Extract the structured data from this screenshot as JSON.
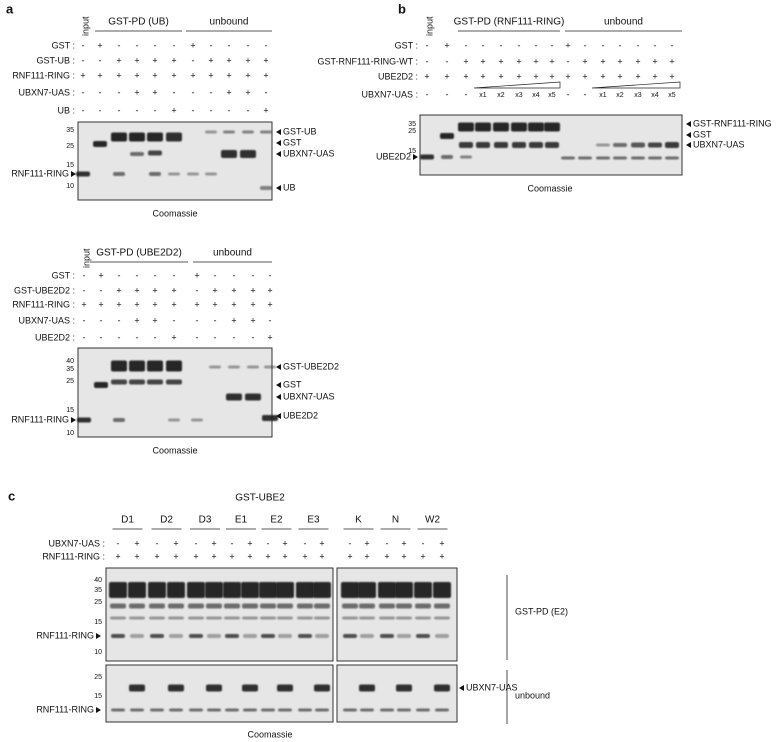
{
  "panel_a": {
    "letter": "a",
    "input": "input",
    "headers": [
      "GST-PD (UB)",
      "unbound"
    ],
    "rows": [
      {
        "name": "GST :",
        "signs": [
          "-",
          "+",
          "-",
          "-",
          "-",
          "-",
          "+",
          "-",
          "-",
          "-",
          "-"
        ]
      },
      {
        "name": "GST-UB :",
        "signs": [
          "-",
          "-",
          "+",
          "+",
          "+",
          "+",
          "-",
          "+",
          "+",
          "+",
          "+"
        ]
      },
      {
        "name": "RNF111-RING :",
        "signs": [
          "+",
          "+",
          "+",
          "+",
          "+",
          "+",
          "+",
          "+",
          "+",
          "+",
          "+"
        ]
      },
      {
        "name": "UBXN7-UAS :",
        "signs": [
          "-",
          "-",
          "-",
          "+",
          "+",
          "-",
          "-",
          "-",
          "+",
          "+",
          "-"
        ]
      },
      {
        "name": "UB :",
        "signs": [
          "-",
          "-",
          "-",
          "-",
          "-",
          "+",
          "-",
          "-",
          "-",
          "-",
          "+"
        ]
      }
    ],
    "markers": [
      35,
      25,
      15,
      10
    ],
    "right_labels": [
      "GST-UB",
      "GST",
      "UBXN7-UAS",
      "UB"
    ],
    "left_label": "RNF111-RING",
    "footer": "Coomassie"
  },
  "panel_b": {
    "letter": "b",
    "input": "input",
    "headers": [
      "GST-PD (RNF111-RING)",
      "unbound"
    ],
    "rows": [
      {
        "name": "GST :",
        "signs": [
          "-",
          "+",
          "-",
          "-",
          "-",
          "-",
          "-",
          "-",
          "+",
          "-",
          "-",
          "-",
          "-",
          "-",
          "-"
        ]
      },
      {
        "name": "GST-RNF111-RING-WT :",
        "signs": [
          "-",
          "-",
          "+",
          "+",
          "+",
          "+",
          "+",
          "+",
          "-",
          "+",
          "+",
          "+",
          "+",
          "+",
          "+"
        ]
      },
      {
        "name": "UBE2D2 :",
        "signs": [
          "+",
          "+",
          "+",
          "+",
          "+",
          "+",
          "+",
          "+",
          "+",
          "+",
          "+",
          "+",
          "+",
          "+",
          "+"
        ]
      },
      {
        "name": "UBXN7-UAS :",
        "signs": [
          "-",
          "-",
          "-",
          "x1",
          "x2",
          "x3",
          "x4",
          "x5",
          "-",
          "-",
          "x1",
          "x2",
          "x3",
          "x4",
          "x5"
        ]
      }
    ],
    "markers": [
      35,
      25,
      15
    ],
    "right_labels": [
      "GST-RNF111-RING",
      "GST",
      "UBXN7-UAS"
    ],
    "left_label": "UBE2D2",
    "footer": "Coomassie"
  },
  "panel_a2": {
    "input": "input",
    "headers": [
      "GST-PD (UBE2D2)",
      "unbound"
    ],
    "rows": [
      {
        "name": "GST :",
        "signs": [
          "-",
          "+",
          "-",
          "-",
          "-",
          "-",
          "+",
          "-",
          "-",
          "-",
          "-"
        ]
      },
      {
        "name": "GST-UBE2D2 :",
        "signs": [
          "-",
          "-",
          "+",
          "+",
          "+",
          "+",
          "-",
          "+",
          "+",
          "+",
          "+"
        ]
      },
      {
        "name": "RNF111-RING :",
        "signs": [
          "+",
          "+",
          "+",
          "+",
          "+",
          "+",
          "+",
          "+",
          "+",
          "+",
          "+"
        ]
      },
      {
        "name": "UBXN7-UAS :",
        "signs": [
          "-",
          "-",
          "-",
          "+",
          "+",
          "-",
          "-",
          "-",
          "+",
          "+",
          "-"
        ]
      },
      {
        "name": "UBE2D2 :",
        "signs": [
          "-",
          "-",
          "-",
          "-",
          "-",
          "+",
          "-",
          "-",
          "-",
          "-",
          "+"
        ]
      }
    ],
    "markers": [
      40,
      35,
      25,
      15,
      10
    ],
    "right_labels": [
      "GST-UBE2D2",
      "GST",
      "UBXN7-UAS",
      "UBE2D2"
    ],
    "left_label": "RNF111-RING",
    "footer": "Coomassie"
  },
  "panel_c": {
    "letter": "c",
    "title": "GST-UBE2",
    "groups": [
      "D1",
      "D2",
      "D3",
      "E1",
      "E2",
      "E3",
      "K",
      "N",
      "W2"
    ],
    "rows": [
      {
        "name": "UBXN7-UAS :",
        "signs": [
          "-",
          "+",
          "-",
          "+",
          "-",
          "+",
          "-",
          "+",
          "-",
          "+",
          "-",
          "+",
          "-",
          "+",
          "-",
          "+",
          "-",
          "+"
        ]
      },
      {
        "name": "RNF111-RING :",
        "signs": [
          "+",
          "+",
          "+",
          "+",
          "+",
          "+",
          "+",
          "+",
          "+",
          "+",
          "+",
          "+",
          "+",
          "+",
          "+",
          "+",
          "+",
          "+"
        ]
      }
    ],
    "top_markers": [
      40,
      35,
      25,
      15,
      10
    ],
    "bottom_markers": [
      25,
      15
    ],
    "left_labels": [
      "RNF111-RING",
      "RNF111-RING"
    ],
    "right_label": "UBXN7-UAS",
    "side_labels": [
      "GST-PD (E2)",
      "unbound"
    ],
    "footer": "Coomassie"
  }
}
